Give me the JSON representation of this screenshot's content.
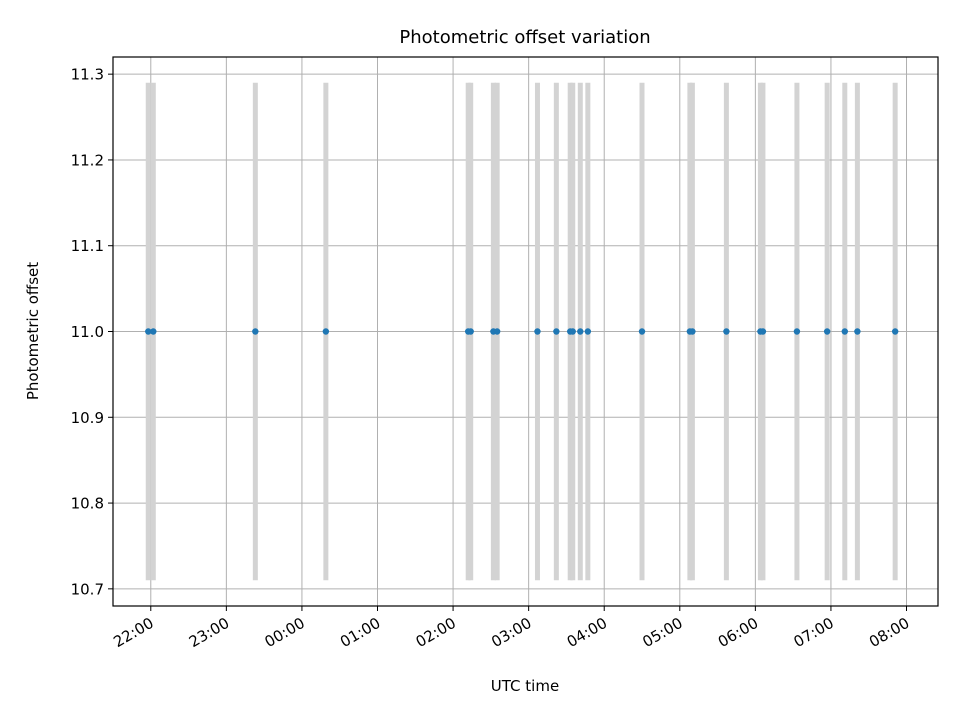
{
  "chart_data": {
    "type": "scatter",
    "title": "Photometric offset variation",
    "xlabel": "UTC time",
    "ylabel": "Photometric offset",
    "x_ticks": [
      "22:00",
      "23:00",
      "00:00",
      "01:00",
      "02:00",
      "03:00",
      "04:00",
      "05:00",
      "06:00",
      "07:00",
      "08:00"
    ],
    "y_ticks": [
      "10.7",
      "10.8",
      "10.9",
      "11.0",
      "11.1",
      "11.2",
      "11.3"
    ],
    "xlim": [
      "21:30",
      "08:25"
    ],
    "ylim": [
      10.68,
      11.32
    ],
    "grid": true,
    "series": [
      {
        "times": [
          "21:58",
          "22:02",
          "23:23",
          "00:19",
          "02:12",
          "02:14",
          "02:32",
          "02:35",
          "03:07",
          "03:22",
          "03:33",
          "03:35",
          "03:41",
          "03:47",
          "04:30",
          "05:08",
          "05:10",
          "05:37",
          "06:04",
          "06:06",
          "06:33",
          "06:57",
          "07:11",
          "07:21",
          "07:51"
        ],
        "values": [
          11.0,
          11.0,
          11.0,
          11.0,
          11.0,
          11.0,
          11.0,
          11.0,
          11.0,
          11.0,
          11.0,
          11.0,
          11.0,
          11.0,
          11.0,
          11.0,
          11.0,
          11.0,
          11.0,
          11.0,
          11.0,
          11.0,
          11.0,
          11.0,
          11.0
        ],
        "color": "#1f77b4"
      }
    ],
    "error_bars": {
      "color": "#d3d3d3",
      "low": 10.71,
      "high": 11.29
    }
  }
}
